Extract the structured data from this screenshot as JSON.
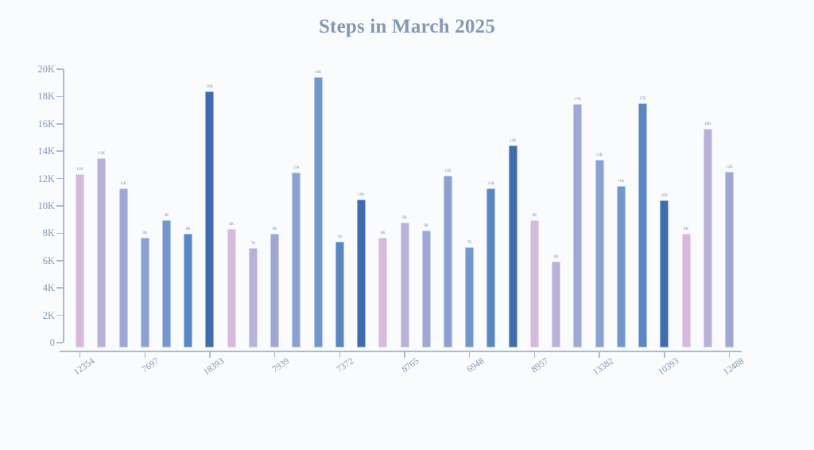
{
  "title": "Steps in March 2025",
  "colors": {
    "background": "#fafbfd",
    "title_text": "#8299b5",
    "axis_line": "#a9bcd4",
    "axis_text": "#8299b5",
    "bar_label_text": "#7b93b4",
    "weekly_bar_cycle": [
      "#d5badd",
      "#bab1d9",
      "#9fa7d5",
      "#8aa1d1",
      "#7197ce",
      "#5987c6",
      "#3f6cae"
    ]
  },
  "chart_data": {
    "type": "bar",
    "title": "Steps in March 2025",
    "xlabel": "",
    "ylabel": "",
    "ylim": [
      0,
      20000
    ],
    "grid": false,
    "legend_position": "none",
    "y_tick_labels": [
      "0",
      "2K",
      "4K",
      "6K",
      "8K",
      "10K",
      "12K",
      "14K",
      "16K",
      "18K",
      "20K"
    ],
    "x_tick_labels": [
      "12354",
      "7697",
      "18393",
      "7939",
      "7372",
      "8765",
      "6948",
      "8957",
      "13382",
      "10393",
      "12488"
    ],
    "x_tick_bar_indices": [
      0,
      3,
      6,
      9,
      12,
      15,
      18,
      21,
      24,
      27,
      30
    ],
    "bars": [
      {
        "value": 12354,
        "label": "12K"
      },
      {
        "value": 13490,
        "label": "13K"
      },
      {
        "value": 11280,
        "label": "11K"
      },
      {
        "value": 7697,
        "label": "8K"
      },
      {
        "value": 8950,
        "label": "9K"
      },
      {
        "value": 7970,
        "label": "8K"
      },
      {
        "value": 18393,
        "label": "18K"
      },
      {
        "value": 8310,
        "label": "8K"
      },
      {
        "value": 6920,
        "label": "7K"
      },
      {
        "value": 7939,
        "label": "8K"
      },
      {
        "value": 12430,
        "label": "12K"
      },
      {
        "value": 19400,
        "label": "19K"
      },
      {
        "value": 7372,
        "label": "7K"
      },
      {
        "value": 10480,
        "label": "10K"
      },
      {
        "value": 7670,
        "label": "8K"
      },
      {
        "value": 8765,
        "label": "9K"
      },
      {
        "value": 8200,
        "label": "8K"
      },
      {
        "value": 12210,
        "label": "12K"
      },
      {
        "value": 6948,
        "label": "7K"
      },
      {
        "value": 11280,
        "label": "11K"
      },
      {
        "value": 14420,
        "label": "14K"
      },
      {
        "value": 8957,
        "label": "9K"
      },
      {
        "value": 5930,
        "label": "6K"
      },
      {
        "value": 17440,
        "label": "17K"
      },
      {
        "value": 13382,
        "label": "13K"
      },
      {
        "value": 11450,
        "label": "11K"
      },
      {
        "value": 17500,
        "label": "17K"
      },
      {
        "value": 10393,
        "label": "10K"
      },
      {
        "value": 7970,
        "label": "8K"
      },
      {
        "value": 15640,
        "label": "16K"
      },
      {
        "value": 12488,
        "label": "12K"
      }
    ]
  }
}
